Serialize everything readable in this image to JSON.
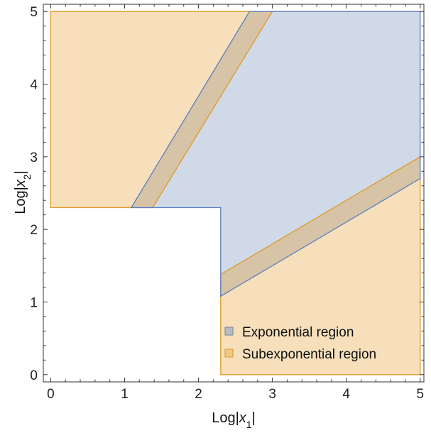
{
  "chart_data": {
    "type": "area",
    "title": "",
    "xlabel": {
      "prefix": "Log|",
      "var": "x",
      "sub": "1",
      "suffix": "|"
    },
    "ylabel": {
      "prefix": "Log|",
      "var": "x",
      "sub": "2",
      "suffix": "|"
    },
    "xlim": [
      -0.1,
      5.05
    ],
    "ylim": [
      -0.1,
      5.1
    ],
    "xticks": [
      0,
      1,
      2,
      3,
      4,
      5
    ],
    "yticks": [
      0,
      1,
      2,
      3,
      4,
      5
    ],
    "xtick_labels": [
      "0",
      "1",
      "2",
      "3",
      "4",
      "5"
    ],
    "ytick_labels": [
      "0",
      "1",
      "2",
      "3",
      "4",
      "5"
    ],
    "grid": false,
    "legend_position": "bottom-right",
    "series": [
      {
        "name": "Exponential region",
        "color": "#5b7fbf",
        "fill": "#cfd9e8",
        "polygon": [
          [
            1.09,
            2.3
          ],
          [
            2.3,
            2.3
          ],
          [
            2.3,
            1.08
          ],
          [
            5.0,
            2.7
          ],
          [
            5.0,
            5.0
          ],
          [
            2.69,
            5.0
          ]
        ]
      },
      {
        "name": "Subexponential region",
        "color": "#e09a2a",
        "fill": "#f6dfba",
        "polygons": [
          [
            [
              0.0,
              2.3
            ],
            [
              1.38,
              2.3
            ],
            [
              3.0,
              5.0
            ],
            [
              0.0,
              5.0
            ]
          ],
          [
            [
              2.3,
              0.0
            ],
            [
              5.0,
              0.0
            ],
            [
              5.0,
              3.0
            ],
            [
              2.3,
              1.38
            ]
          ]
        ]
      }
    ],
    "overlap_fill": "#d7c3a6"
  }
}
